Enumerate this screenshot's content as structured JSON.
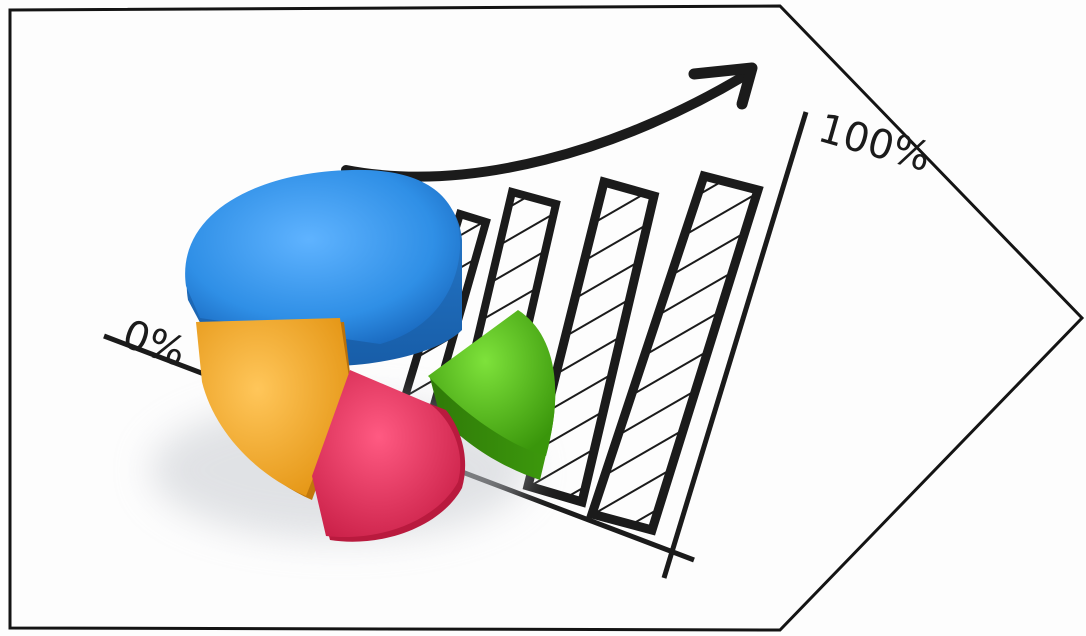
{
  "illustration": {
    "axis_start_label": "0%",
    "axis_end_label": "100%"
  },
  "colors": {
    "background": "#fdfdfd",
    "frame": "#141414",
    "ink": "#1b1b1b",
    "pie_blue": "#2f8fe6",
    "pie_orange": "#f5a623",
    "pie_red": "#e0315a",
    "pie_green": "#46b00f"
  }
}
